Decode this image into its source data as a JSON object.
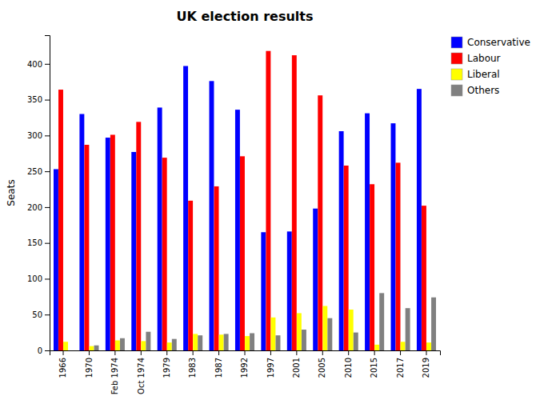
{
  "chart_data": {
    "type": "bar",
    "title": "UK election results",
    "ylabel": "Seats",
    "categories": [
      "1966",
      "1970",
      "Feb 1974",
      "Oct 1974",
      "1979",
      "1983",
      "1987",
      "1992",
      "1997",
      "2001",
      "2005",
      "2010",
      "2015",
      "2017",
      "2019"
    ],
    "series": [
      {
        "name": "Conservative",
        "color": "#0000ff",
        "values": [
          253,
          330,
          297,
          277,
          339,
          397,
          376,
          336,
          165,
          166,
          198,
          306,
          331,
          317,
          365
        ]
      },
      {
        "name": "Labour",
        "color": "#ff0000",
        "values": [
          364,
          287,
          301,
          319,
          269,
          209,
          229,
          271,
          418,
          412,
          356,
          258,
          232,
          262,
          202
        ]
      },
      {
        "name": "Liberal",
        "color": "#ffff00",
        "values": [
          12,
          6,
          14,
          13,
          11,
          23,
          22,
          20,
          46,
          52,
          62,
          57,
          8,
          12,
          11
        ]
      },
      {
        "name": "Others",
        "color": "#808080",
        "values": [
          0,
          7,
          17,
          26,
          16,
          21,
          23,
          24,
          21,
          29,
          45,
          25,
          80,
          59,
          74
        ]
      }
    ],
    "ylim": [
      0,
      440
    ],
    "yticks": [
      0,
      50,
      100,
      150,
      200,
      250,
      300,
      350,
      400
    ],
    "grid": false,
    "legend": "upper right"
  }
}
